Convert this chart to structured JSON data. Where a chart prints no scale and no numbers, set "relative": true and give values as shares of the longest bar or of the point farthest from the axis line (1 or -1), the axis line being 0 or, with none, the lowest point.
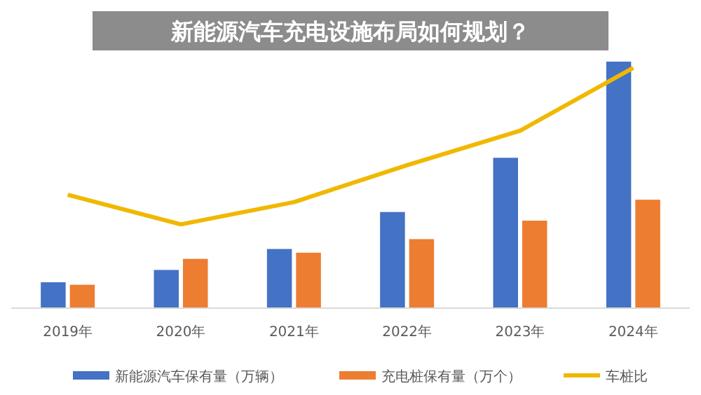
{
  "chart_data": {
    "type": "bar",
    "title": "新能源汽车充电设施布局如何规划？",
    "relative": true,
    "legend": "bottom",
    "categories": [
      "2019年",
      "2020年",
      "2021年",
      "2022年",
      "2023年",
      "2024年"
    ],
    "series": [
      {
        "name": "新能源汽车保有量（万辆）",
        "color": "#4472c4",
        "values": [
          0.105,
          0.155,
          0.24,
          0.39,
          0.61,
          1
        ]
      },
      {
        "name": "充电桩保有量（万个）",
        "color": "#ed7d31",
        "values": [
          0.095,
          0.2,
          0.225,
          0.28,
          0.355,
          0.44
        ]
      },
      {
        "name": "车桩比",
        "type": "line",
        "color": "#f0b800",
        "values": [
          0.46,
          0.34,
          0.43,
          0.58,
          0.72,
          0.975
        ]
      }
    ]
  }
}
